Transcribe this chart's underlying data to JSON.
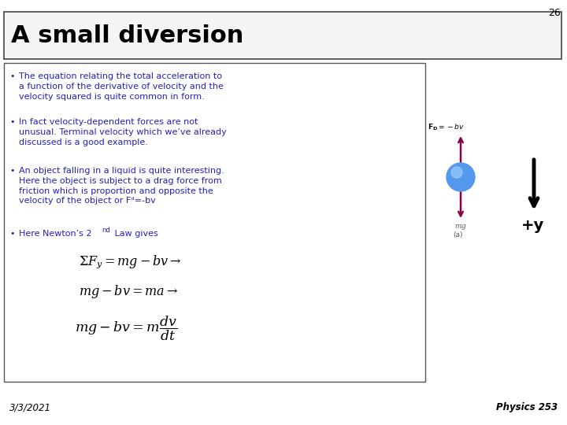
{
  "slide_number": "26",
  "title": "A small diversion",
  "bg_color": "#ffffff",
  "title_color": "#000000",
  "bullet_color": "#2222bb",
  "eq1": "\\Sigma F_y = mg - bv \\rightarrow",
  "eq2": "mg - bv = ma \\rightarrow",
  "eq3": "mg - bv = m\\dfrac{dv}{dt}",
  "footer_left": "3/3/2021",
  "footer_right": "Physics 253",
  "arrow_color": "#880044",
  "ball_color": "#5599ee",
  "ball_highlight": "#99ccff"
}
